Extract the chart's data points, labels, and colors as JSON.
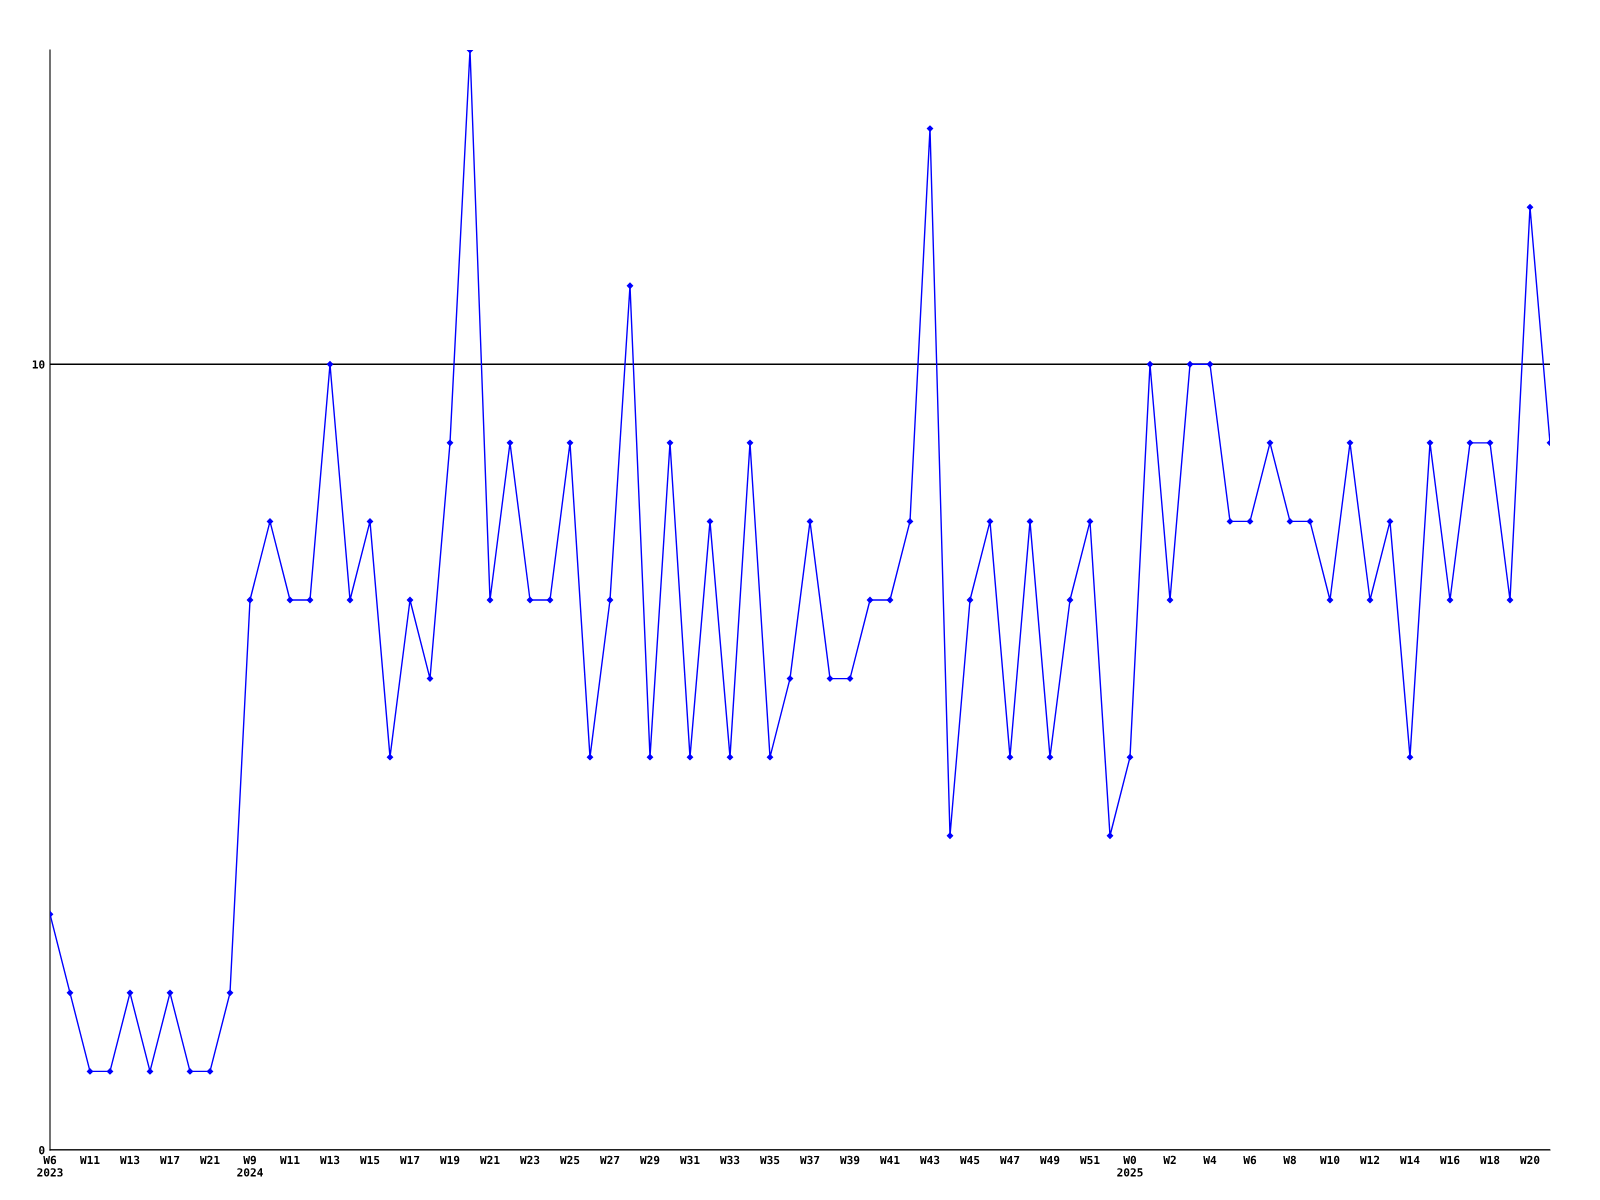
{
  "chart_data": {
    "type": "line",
    "categories": [
      "W6\n2023",
      null,
      "W11",
      null,
      "W13",
      null,
      "W17",
      null,
      "W21",
      null,
      "W9\n2024",
      null,
      "W11",
      null,
      "W13",
      null,
      "W15",
      null,
      "W17",
      null,
      "W19",
      null,
      "W21",
      null,
      "W23",
      null,
      "W25",
      null,
      "W27",
      null,
      "W29",
      null,
      "W31",
      null,
      "W33",
      null,
      "W35",
      null,
      "W37",
      null,
      "W39",
      null,
      "W41",
      null,
      "W43",
      null,
      "W45",
      null,
      "W47",
      null,
      "W49",
      null,
      "W51",
      null,
      "W0\n2025",
      null,
      "W2",
      null,
      "W4",
      null,
      "W6",
      null,
      "W8",
      null,
      "W10",
      null,
      "W12",
      null,
      "W14",
      null,
      "W16",
      null,
      "W18",
      null,
      "W20",
      null
    ],
    "series": [
      {
        "color": "#0000ff",
        "values": [
          3,
          2,
          1,
          1,
          2,
          1,
          2,
          1,
          1,
          2,
          7,
          8,
          7,
          7,
          10,
          7,
          8,
          5,
          7,
          6,
          9,
          14,
          7,
          9,
          7,
          7,
          9,
          5,
          7,
          11,
          5,
          9,
          5,
          8,
          5,
          9,
          5,
          6,
          8,
          6,
          6,
          7,
          7,
          8,
          13,
          4,
          7,
          8,
          5,
          8,
          5,
          7,
          8,
          4,
          5,
          10,
          7,
          10,
          10,
          8,
          8,
          9,
          8,
          8,
          7,
          9,
          7,
          8,
          5,
          9,
          7,
          9,
          9,
          7,
          12,
          9
        ]
      }
    ],
    "ylim": [
      0,
      14
    ],
    "yticks": [
      0,
      10
    ],
    "grid": "y",
    "marker": "diamond",
    "line_style": "solid"
  }
}
